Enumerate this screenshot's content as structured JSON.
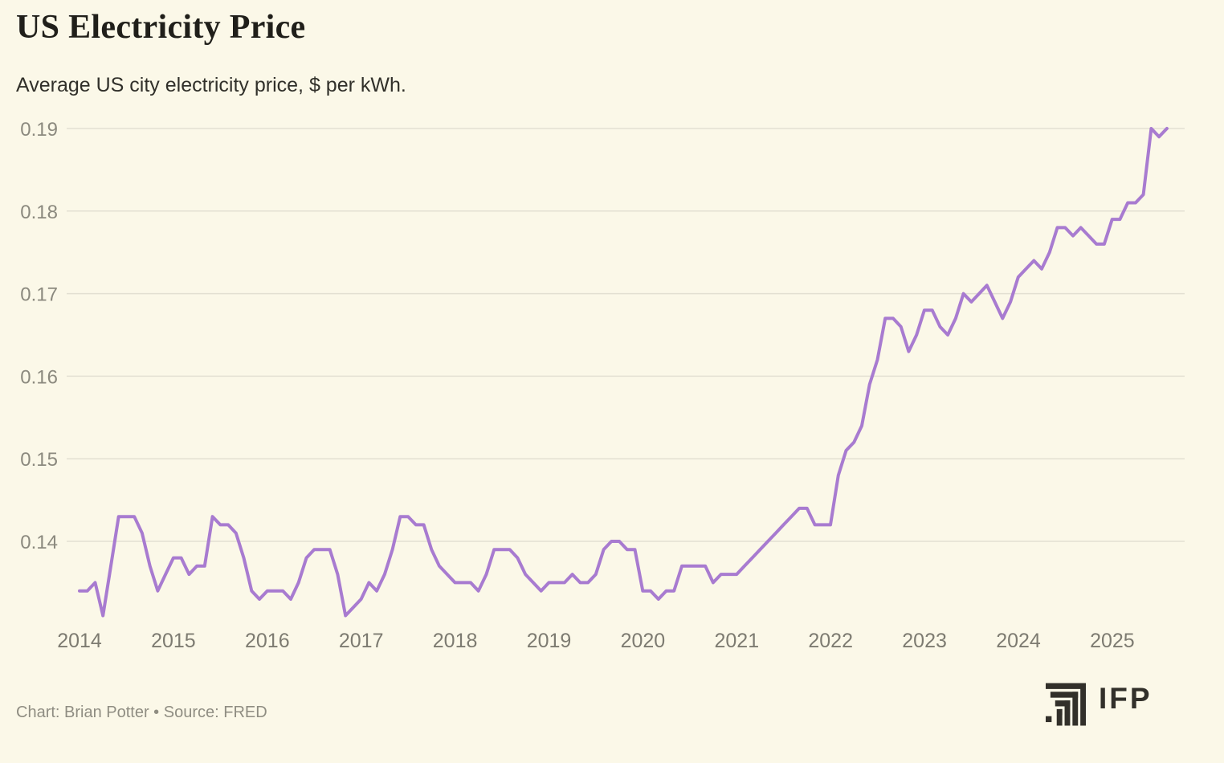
{
  "header": {
    "title": "US Electricity Price",
    "subtitle": "Average US city electricity price, $ per kWh."
  },
  "chart_data": {
    "type": "line",
    "title": "US Electricity Price",
    "subtitle": "Average US city electricity price, $ per kWh.",
    "ylabel": "$ per kWh",
    "frequency": "monthly",
    "x_start": "2014-01",
    "x_end": "2025-08",
    "grid": "horizontal",
    "legend": "none",
    "ylim": [
      0.129,
      0.192
    ],
    "ytick_values": [
      0.19,
      0.18,
      0.17,
      0.16,
      0.15,
      0.14
    ],
    "ytick_labels": [
      "0.19",
      "0.18",
      "0.17",
      "0.16",
      "0.15",
      "0.14"
    ],
    "xtick_labels": [
      "2014",
      "2015",
      "2016",
      "2017",
      "2018",
      "2019",
      "2020",
      "2021",
      "2022",
      "2023",
      "2024",
      "2025"
    ],
    "series": [
      {
        "name": "Average US city electricity price",
        "values": [
          0.134,
          0.134,
          0.135,
          0.131,
          0.137,
          0.143,
          0.143,
          0.143,
          0.141,
          0.137,
          0.134,
          0.136,
          0.138,
          0.138,
          0.136,
          0.137,
          0.137,
          0.143,
          0.142,
          0.142,
          0.141,
          0.138,
          0.134,
          0.133,
          0.134,
          0.134,
          0.134,
          0.133,
          0.135,
          0.138,
          0.139,
          0.139,
          0.139,
          0.136,
          0.131,
          0.132,
          0.133,
          0.135,
          0.134,
          0.136,
          0.139,
          0.143,
          0.143,
          0.142,
          0.142,
          0.139,
          0.137,
          0.136,
          0.135,
          0.135,
          0.135,
          0.134,
          0.136,
          0.139,
          0.139,
          0.139,
          0.138,
          0.136,
          0.135,
          0.134,
          0.135,
          0.135,
          0.135,
          0.136,
          0.135,
          0.135,
          0.136,
          0.139,
          0.14,
          0.14,
          0.139,
          0.139,
          0.134,
          0.134,
          0.133,
          0.134,
          0.134,
          0.137,
          0.137,
          0.137,
          0.137,
          0.135,
          0.136,
          0.136,
          0.136,
          0.137,
          0.138,
          0.139,
          0.14,
          0.141,
          0.142,
          0.143,
          0.144,
          0.144,
          0.142,
          0.142,
          0.142,
          0.148,
          0.151,
          0.152,
          0.154,
          0.159,
          0.162,
          0.167,
          0.167,
          0.166,
          0.163,
          0.165,
          0.168,
          0.168,
          0.166,
          0.165,
          0.167,
          0.17,
          0.169,
          0.17,
          0.171,
          0.169,
          0.167,
          0.169,
          0.172,
          0.173,
          0.174,
          0.173,
          0.175,
          0.178,
          0.178,
          0.177,
          0.178,
          0.177,
          0.176,
          0.176,
          0.179,
          0.179,
          0.181,
          0.181,
          0.182,
          0.19,
          0.189,
          0.19
        ]
      }
    ],
    "line_color": "#a87bd0"
  },
  "footer": {
    "credit": "Chart: Brian Potter • Source: FRED",
    "logo_text": "IFP"
  },
  "colors": {
    "background": "#fbf8e8",
    "line": "#a87bd0",
    "grid": "#e3e0d2",
    "ytick_label": "#8b897e",
    "xtick_label": "#7d7b71",
    "title": "#201f1a",
    "subtitle": "#31302a",
    "footer_text": "#8f8d82",
    "logo": "#32302a"
  }
}
